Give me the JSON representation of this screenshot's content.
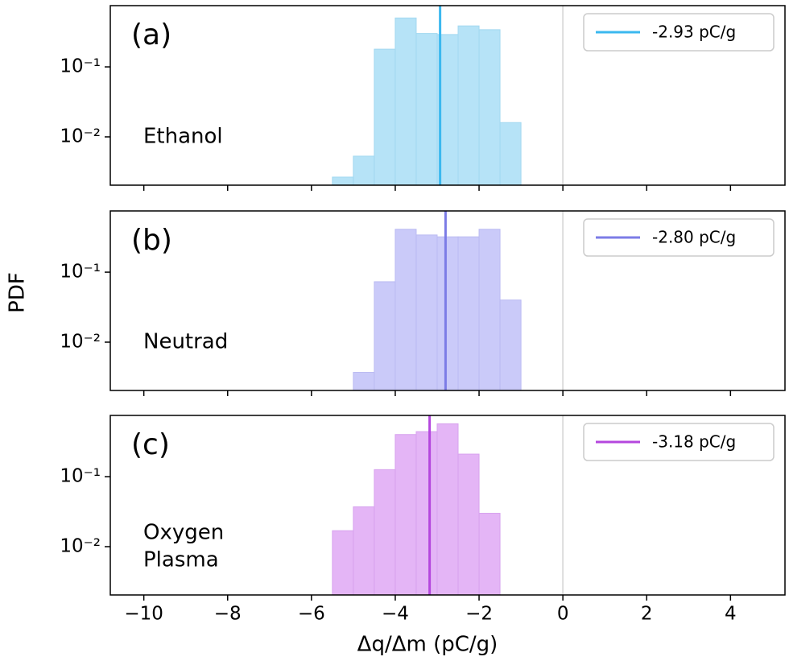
{
  "chart_data": [
    {
      "type": "histogram",
      "panel_label": "(a)",
      "sample": [
        "Ethanol"
      ],
      "bins": [
        -5.5,
        -5.0,
        -4.5,
        -4.0,
        -3.5,
        -3.0,
        -2.5,
        -2.0,
        -1.5,
        -1.0
      ],
      "values": [
        0.00266,
        0.0053,
        0.179,
        0.5,
        0.3,
        0.29,
        0.385,
        0.34,
        0.016
      ],
      "color": "#b6e3f7",
      "edge_color": "#a2d8f0",
      "mean": {
        "name": "-2.93 pC/g",
        "value": -2.93,
        "color": "#3bb8ef"
      },
      "reference_line": {
        "value": 0,
        "color": "#dddddd"
      },
      "log_y": true,
      "xlim": [
        -10.8,
        5.3
      ],
      "ylim": [
        0.00204,
        0.75
      ],
      "yticks": [
        {
          "value": 0.1,
          "label": "10⁻¹"
        },
        {
          "value": 0.01,
          "label": "10⁻²"
        }
      ],
      "xticks": [
        -10,
        -8,
        -6,
        -4,
        -2,
        0,
        2,
        4
      ],
      "legend": "upper right"
    },
    {
      "type": "histogram",
      "panel_label": "(b)",
      "sample": [
        "Neutrad"
      ],
      "ylabel": "PDF",
      "bins": [
        -5.0,
        -4.5,
        -4.0,
        -3.5,
        -3.0,
        -2.5,
        -2.0,
        -1.5,
        -1.0
      ],
      "values": [
        0.0037,
        0.073,
        0.41,
        0.34,
        0.32,
        0.32,
        0.41,
        0.04
      ],
      "color": "#cacaf9",
      "edge_color": "#babaf2",
      "mean": {
        "name": "-2.80 pC/g",
        "value": -2.8,
        "color": "#7c7ce6"
      },
      "reference_line": {
        "value": 0,
        "color": "#dddddd"
      },
      "log_y": true,
      "xlim": [
        -10.8,
        5.3
      ],
      "ylim": [
        0.00204,
        0.75
      ],
      "yticks": [
        {
          "value": 0.1,
          "label": "10⁻¹"
        },
        {
          "value": 0.01,
          "label": "10⁻²"
        }
      ],
      "xticks": [
        -10,
        -8,
        -6,
        -4,
        -2,
        0,
        2,
        4
      ],
      "legend": "upper right"
    },
    {
      "type": "histogram",
      "panel_label": "(c)",
      "sample": [
        "Oxygen",
        "Plasma"
      ],
      "xlabel": "Δq/Δm (pC/g)",
      "bins": [
        -5.5,
        -5.0,
        -4.5,
        -4.0,
        -3.5,
        -3.0,
        -2.5,
        -2.0,
        -1.5
      ],
      "values": [
        0.0169,
        0.037,
        0.126,
        0.4,
        0.44,
        0.57,
        0.21,
        0.03
      ],
      "color": "#e4b5f6",
      "edge_color": "#d7a2ee",
      "mean": {
        "name": "-3.18 pC/g",
        "value": -3.18,
        "color": "#b447de"
      },
      "reference_line": {
        "value": 0,
        "color": "#dddddd"
      },
      "log_y": true,
      "xlim": [
        -10.8,
        5.3
      ],
      "ylim": [
        0.00204,
        0.75
      ],
      "yticks": [
        {
          "value": 0.1,
          "label": "10⁻¹"
        },
        {
          "value": 0.01,
          "label": "10⁻²"
        }
      ],
      "xticks": [
        {
          "value": -10,
          "label": "−10"
        },
        {
          "value": -8,
          "label": "−8"
        },
        {
          "value": -6,
          "label": "−6"
        },
        {
          "value": -4,
          "label": "−4"
        },
        {
          "value": -2,
          "label": "−2"
        },
        0,
        2,
        4
      ],
      "legend": "upper right"
    }
  ]
}
